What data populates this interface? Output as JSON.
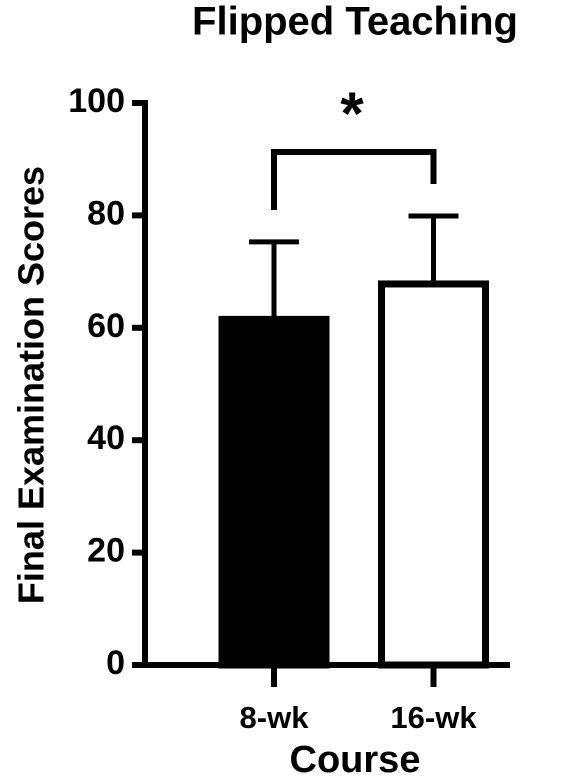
{
  "chart_data": {
    "type": "bar",
    "title": "Flipped Teaching",
    "xlabel": "Course",
    "ylabel": "Final Examination Scores",
    "categories": [
      "8-wk",
      "16-wk"
    ],
    "values": [
      61.5,
      67.8
    ],
    "errors": [
      13.8,
      12.1
    ],
    "colors": [
      "#000000",
      "#ffffff"
    ],
    "ylim": [
      0,
      100
    ],
    "yticks": [
      0,
      20,
      40,
      60,
      80,
      100
    ],
    "annotation": "*"
  }
}
